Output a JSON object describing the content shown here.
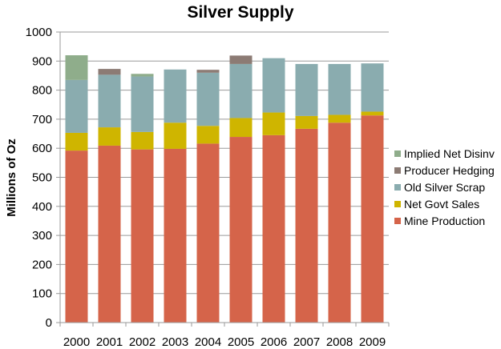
{
  "chart_data": {
    "type": "bar",
    "stacked": true,
    "title": "Silver Supply",
    "xlabel": "",
    "ylabel": "Millions of Oz",
    "ylim": [
      0,
      1000
    ],
    "yticks": [
      0,
      100,
      200,
      300,
      400,
      500,
      600,
      700,
      800,
      900,
      1000
    ],
    "grid": true,
    "legend_position": "right",
    "categories": [
      "2000",
      "2001",
      "2002",
      "2003",
      "2004",
      "2005",
      "2006",
      "2007",
      "2008",
      "2009"
    ],
    "series": [
      {
        "name": "Mine Production",
        "color": "#D5644A",
        "values": [
          592,
          609,
          596,
          598,
          616,
          639,
          645,
          667,
          688,
          713
        ]
      },
      {
        "name": "Net Govt Sales",
        "color": "#CFB500",
        "values": [
          61,
          63,
          60,
          90,
          61,
          65,
          78,
          44,
          27,
          13
        ]
      },
      {
        "name": "Old Silver Scrap",
        "color": "#8AACAF",
        "values": [
          182,
          181,
          191,
          183,
          183,
          186,
          187,
          179,
          175,
          166
        ]
      },
      {
        "name": "Producer Hedging",
        "color": "#8C7B74",
        "values": [
          0,
          20,
          0,
          0,
          10,
          29,
          0,
          0,
          0,
          0
        ]
      },
      {
        "name": "Implied Net Disinv",
        "color": "#8FAD8B",
        "values": [
          85,
          0,
          9,
          0,
          0,
          0,
          0,
          0,
          0,
          0
        ]
      }
    ]
  }
}
